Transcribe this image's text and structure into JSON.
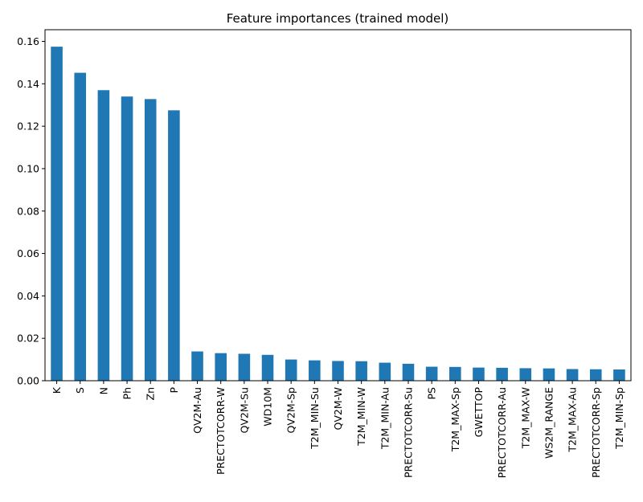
{
  "chart_data": {
    "type": "bar",
    "title": "Feature importances (trained model)",
    "xlabel": "",
    "ylabel": "",
    "ylim": [
      0,
      0.1655
    ],
    "yticks": [
      0.0,
      0.02,
      0.04,
      0.06,
      0.08,
      0.1,
      0.12,
      0.14,
      0.16
    ],
    "ytick_labels": [
      "0.00",
      "0.02",
      "0.04",
      "0.06",
      "0.08",
      "0.10",
      "0.12",
      "0.14",
      "0.16"
    ],
    "grid": false,
    "legend": "none",
    "bar_color": "#1f77b4",
    "categories": [
      "K",
      "S",
      "N",
      "Ph",
      "Zn",
      "P",
      "QV2M-Au",
      "PRECTOTCORR-W",
      "QV2M-Su",
      "WD10M",
      "QV2M-Sp",
      "T2M_MIN-Su",
      "QV2M-W",
      "T2M_MIN-W",
      "T2M_MIN-Au",
      "PRECTOTCORR-Su",
      "PS",
      "T2M_MAX-Sp",
      "GWETTOP",
      "PRECTOTCORR-Au",
      "T2M_MAX-W",
      "WS2M_RANGE",
      "T2M_MAX-Au",
      "PRECTOTCORR-Sp",
      "T2M_MIN-Sp"
    ],
    "values": [
      0.1575,
      0.1452,
      0.137,
      0.134,
      0.1328,
      0.1275,
      0.0138,
      0.013,
      0.0127,
      0.0122,
      0.01,
      0.0096,
      0.0093,
      0.0092,
      0.0085,
      0.008,
      0.0066,
      0.0065,
      0.0062,
      0.0061,
      0.0059,
      0.0058,
      0.0055,
      0.0054,
      0.0053
    ]
  }
}
